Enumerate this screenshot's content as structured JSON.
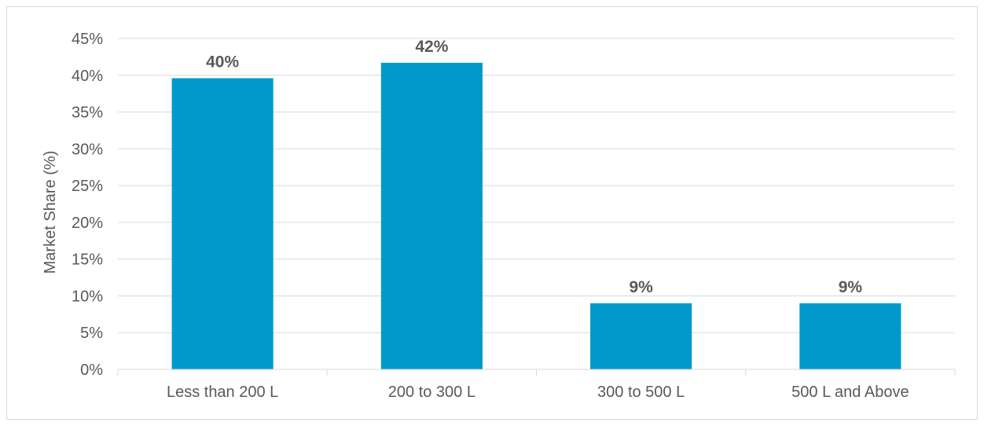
{
  "chart_data": {
    "type": "bar",
    "title": "",
    "xlabel": "",
    "ylabel": "Market Share (%)",
    "categories": [
      "Less than 200 L",
      "200 to 300 L",
      "300 to 500 L",
      "500 L and Above"
    ],
    "values": [
      39.6,
      41.7,
      9.0,
      9.0
    ],
    "data_labels": [
      "40%",
      "42%",
      "9%",
      "9%"
    ],
    "ylim": [
      0,
      45
    ],
    "yticks": [
      0,
      5,
      10,
      15,
      20,
      25,
      30,
      35,
      40,
      45
    ],
    "ytick_labels": [
      "0%",
      "5%",
      "10%",
      "15%",
      "20%",
      "25%",
      "30%",
      "35%",
      "40%",
      "45%"
    ],
    "grid": true,
    "legend": "none",
    "bar_color": "#0099cc",
    "gridline_color": "#d9d9d9",
    "text_color": "#595959"
  }
}
